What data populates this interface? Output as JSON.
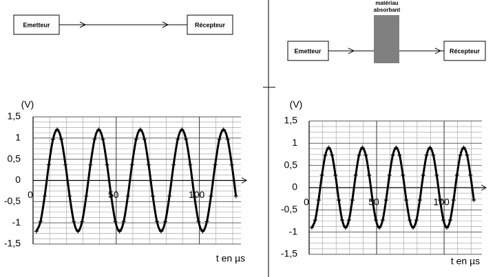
{
  "diagrams": [
    {
      "emitter": "Emetteur",
      "receiver": "Récepteur"
    },
    {
      "emitter": "Emetteur",
      "receiver": "Récepteur",
      "absorber": [
        "matériau",
        "absorbant"
      ]
    }
  ],
  "chart_data": [
    {
      "type": "line",
      "ylabel": "(V)",
      "xlabel": "t en µs",
      "x": [
        2,
        4.5,
        7,
        9.5,
        12,
        14.5,
        17,
        19.5,
        22,
        24.5,
        27,
        29.5,
        32,
        34.5,
        37,
        39.5,
        42,
        44.5,
        47,
        49.5,
        52,
        54.5,
        57,
        59.5,
        62,
        64.5,
        67,
        69.5,
        72,
        74.5,
        77,
        79.5,
        82,
        84.5,
        87,
        89.5,
        92,
        94.5,
        97,
        99.5,
        102,
        104.5,
        107,
        109.5,
        112,
        114.5,
        117,
        119.5,
        122
      ],
      "series": [
        {
          "color": "#000000",
          "values": [
            -1.2,
            -0.97,
            -0.37,
            0.37,
            0.97,
            1.2,
            0.97,
            0.37,
            -0.37,
            -0.97,
            -1.2,
            -0.97,
            -0.37,
            0.37,
            0.97,
            1.2,
            0.97,
            0.37,
            -0.37,
            -0.97,
            -1.2,
            -0.97,
            -0.37,
            0.37,
            0.97,
            1.2,
            0.97,
            0.37,
            -0.37,
            -0.97,
            -1.2,
            -0.97,
            -0.37,
            0.37,
            0.97,
            1.2,
            0.97,
            0.37,
            -0.37,
            -0.97,
            -1.2,
            -0.97,
            -0.37,
            0.37,
            0.97,
            1.2,
            0.97,
            0.37,
            -0.37
          ]
        }
      ],
      "xlim": [
        0,
        125
      ],
      "xticks": [
        0,
        50,
        100
      ],
      "ylim": [
        -1.5,
        1.5
      ],
      "yticks": [
        {
          "value": 1.5,
          "label": "1,5"
        },
        1,
        {
          "value": 0.5,
          "label": "0,5"
        },
        0,
        {
          "value": -0.5,
          "label": "-0,5"
        },
        -1,
        {
          "value": -1.5,
          "label": "-1,5"
        }
      ],
      "grid": true
    },
    {
      "type": "line",
      "ylabel": "(V)",
      "xlabel": "t en µs",
      "x": [
        2,
        4.5,
        7,
        9.5,
        12,
        14.5,
        17,
        19.5,
        22,
        24.5,
        27,
        29.5,
        32,
        34.5,
        37,
        39.5,
        42,
        44.5,
        47,
        49.5,
        52,
        54.5,
        57,
        59.5,
        62,
        64.5,
        67,
        69.5,
        72,
        74.5,
        77,
        79.5,
        82,
        84.5,
        87,
        89.5,
        92,
        94.5,
        97,
        99.5,
        102,
        104.5,
        107,
        109.5,
        112,
        114.5,
        117,
        119.5,
        122
      ],
      "series": [
        {
          "color": "#000000",
          "values": [
            -0.9,
            -0.73,
            -0.28,
            0.28,
            0.73,
            0.9,
            0.73,
            0.28,
            -0.28,
            -0.73,
            -0.9,
            -0.73,
            -0.28,
            0.28,
            0.73,
            0.9,
            0.73,
            0.28,
            -0.28,
            -0.73,
            -0.9,
            -0.73,
            -0.28,
            0.28,
            0.73,
            0.9,
            0.73,
            0.28,
            -0.28,
            -0.73,
            -0.9,
            -0.73,
            -0.28,
            0.28,
            0.73,
            0.9,
            0.73,
            0.28,
            -0.28,
            -0.73,
            -0.9,
            -0.73,
            -0.28,
            0.28,
            0.73,
            0.9,
            0.73,
            0.28,
            -0.28
          ]
        }
      ],
      "xlim": [
        0,
        128
      ],
      "xticks": [
        0,
        50,
        100
      ],
      "ylim": [
        -1.5,
        1.5
      ],
      "yticks": [
        {
          "value": 1.5,
          "label": "1,5"
        },
        1,
        {
          "value": 0.5,
          "label": "0,5"
        },
        0,
        {
          "value": -0.5,
          "label": "-0,5"
        },
        -1,
        {
          "value": -1.5,
          "label": "-1,5"
        }
      ],
      "grid": true
    }
  ]
}
